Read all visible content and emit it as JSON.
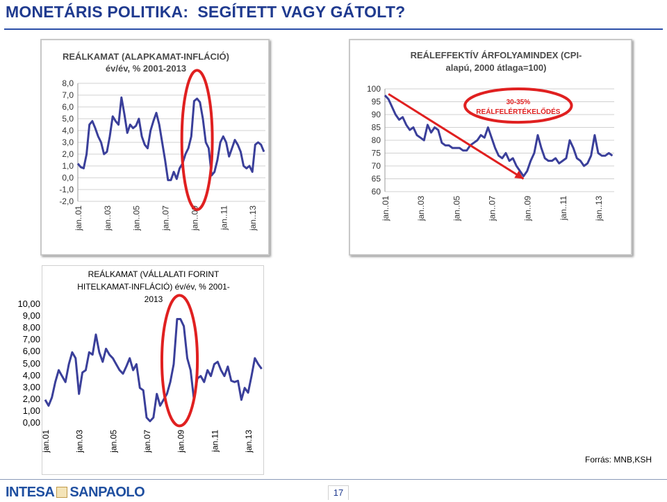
{
  "page": {
    "title": "MONETÁRIS POLITIKA:  SEGÍTETT VAGY GÁTOLT?",
    "source": "Forrás: MNB,KSH",
    "page_number": "17",
    "logo_left": "INTESA",
    "logo_right": "SANPAOLO",
    "accent": "#2b3a9a",
    "highlight": "#e02020"
  },
  "chart_data": [
    {
      "type": "line",
      "title": "REÁLKAMAT (ALAPKAMAT-INFLÁCIÓ)",
      "subtitle": "év/év, % 2001-2013",
      "ylim": [
        -2,
        8
      ],
      "yticks": [
        -2,
        -1,
        0,
        1,
        2,
        3,
        4,
        5,
        6,
        7,
        8
      ],
      "ytick_labels": [
        "-2,0",
        "-1,0",
        "0,0",
        "1,0",
        "2,0",
        "3,0",
        "4,0",
        "5,0",
        "6,0",
        "7,0",
        "8,0"
      ],
      "xlim": [
        2001.0,
        2013.9
      ],
      "xticks": [
        2001,
        2003,
        2005,
        2007,
        2009,
        2011,
        2013
      ],
      "xtick_labels": [
        "jan..01",
        "jan..03",
        "jan..05",
        "jan..07",
        "jan..09",
        "jan..11",
        "jan..13"
      ],
      "grid": true,
      "annotation": {
        "shape": "ellipse",
        "cx": 2009.2,
        "cy": 3.2,
        "rx": 1.05,
        "ry": 5.9,
        "text": ""
      },
      "series": [
        {
          "color": "#3a3f9a",
          "x": [
            2001.0,
            2001.2,
            2001.4,
            2001.6,
            2001.8,
            2002.0,
            2002.2,
            2002.4,
            2002.6,
            2002.8,
            2003.0,
            2003.2,
            2003.4,
            2003.6,
            2003.8,
            2004.0,
            2004.2,
            2004.4,
            2004.6,
            2004.8,
            2005.0,
            2005.2,
            2005.4,
            2005.6,
            2005.8,
            2006.0,
            2006.2,
            2006.4,
            2006.6,
            2006.8,
            2007.0,
            2007.2,
            2007.4,
            2007.6,
            2007.8,
            2008.0,
            2008.2,
            2008.4,
            2008.6,
            2008.8,
            2009.0,
            2009.2,
            2009.4,
            2009.6,
            2009.8,
            2010.0,
            2010.2,
            2010.4,
            2010.6,
            2010.8,
            2011.0,
            2011.2,
            2011.4,
            2011.6,
            2011.8,
            2012.0,
            2012.2,
            2012.4,
            2012.6,
            2012.8,
            2013.0,
            2013.2,
            2013.4,
            2013.6,
            2013.8
          ],
          "y": [
            1.2,
            0.9,
            0.8,
            2.0,
            4.5,
            4.8,
            4.2,
            3.5,
            3.0,
            2.0,
            2.2,
            3.5,
            5.2,
            4.8,
            4.5,
            6.8,
            5.4,
            3.8,
            4.5,
            4.2,
            4.4,
            5.0,
            3.5,
            2.8,
            2.5,
            4.0,
            4.8,
            5.5,
            4.5,
            3.0,
            1.5,
            -0.2,
            -0.2,
            0.5,
            -0.1,
            0.8,
            1.2,
            2.0,
            2.5,
            3.5,
            6.5,
            6.7,
            6.4,
            5.0,
            3.0,
            2.5,
            0.2,
            0.5,
            1.5,
            3.0,
            3.5,
            3.0,
            1.8,
            2.5,
            3.2,
            2.8,
            2.2,
            1.0,
            0.8,
            1.0,
            0.5,
            2.8,
            3.0,
            2.8,
            2.2
          ]
        }
      ]
    },
    {
      "type": "line",
      "title": "REÁLEFFEKTÍV ÁRFOLYAMINDEX (CPI-",
      "subtitle": "alapú, 2000 átlaga=100)",
      "ylim": [
        60,
        100
      ],
      "yticks": [
        60,
        65,
        70,
        75,
        80,
        85,
        90,
        95,
        100
      ],
      "ytick_labels": [
        "60",
        "65",
        "70",
        "75",
        "80",
        "85",
        "90",
        "95",
        "100"
      ],
      "xlim": [
        2001.0,
        2013.9
      ],
      "xticks": [
        2001,
        2003,
        2005,
        2007,
        2009,
        2011,
        2013
      ],
      "xtick_labels": [
        "jan..01",
        "jan..03",
        "jan..05",
        "jan..07",
        "jan..09",
        "jan..11",
        "jan..13"
      ],
      "grid": true,
      "annotation": {
        "shape": "ellipse",
        "cx": 2008.5,
        "cy": 93.5,
        "rx": 3.0,
        "ry": 6.5,
        "text_line1": "30-35%",
        "text_line2": "REÁLFELÉRTÉKELŐDÉS"
      },
      "arrow": {
        "from": [
          2001.2,
          98
        ],
        "to": [
          2008.8,
          65
        ]
      },
      "series": [
        {
          "color": "#3a3f9a",
          "x": [
            2001.0,
            2001.2,
            2001.4,
            2001.6,
            2001.8,
            2002.0,
            2002.2,
            2002.4,
            2002.6,
            2002.8,
            2003.0,
            2003.2,
            2003.4,
            2003.6,
            2003.8,
            2004.0,
            2004.2,
            2004.4,
            2004.6,
            2004.8,
            2005.0,
            2005.2,
            2005.4,
            2005.6,
            2005.8,
            2006.0,
            2006.2,
            2006.4,
            2006.6,
            2006.8,
            2007.0,
            2007.2,
            2007.4,
            2007.6,
            2007.8,
            2008.0,
            2008.2,
            2008.4,
            2008.6,
            2008.8,
            2009.0,
            2009.2,
            2009.4,
            2009.6,
            2009.8,
            2010.0,
            2010.2,
            2010.4,
            2010.6,
            2010.8,
            2011.0,
            2011.2,
            2011.4,
            2011.6,
            2011.8,
            2012.0,
            2012.2,
            2012.4,
            2012.6,
            2012.8,
            2013.0,
            2013.2,
            2013.4,
            2013.6,
            2013.8
          ],
          "y": [
            97.5,
            96,
            93,
            90,
            88,
            89,
            86,
            84,
            85,
            82,
            81,
            80,
            86,
            83,
            85,
            84,
            79,
            78,
            78,
            77,
            77,
            77,
            76,
            76,
            78,
            79,
            80,
            82,
            81,
            85,
            81,
            77,
            74,
            73,
            75,
            72,
            73,
            70,
            68,
            66,
            68,
            72,
            75,
            82,
            77,
            73,
            72,
            72,
            73,
            71,
            72,
            73,
            80,
            77,
            73,
            72,
            70,
            71,
            74,
            82,
            75,
            74,
            74,
            75,
            74
          ]
        }
      ]
    },
    {
      "type": "line",
      "title": "REÁLKAMAT (VÁLLALATI FORINT HITELKAMAT-INFLÁCIÓ)  év/év, % 2001-2013",
      "ylim": [
        0,
        10
      ],
      "yticks": [
        0,
        1,
        2,
        3,
        4,
        5,
        6,
        7,
        8,
        9,
        10
      ],
      "ytick_labels": [
        "0,00",
        "1,00",
        "2,00",
        "3,00",
        "4,00",
        "5,00",
        "6,00",
        "7,00",
        "8,00",
        "9,00",
        "10,00"
      ],
      "xlim": [
        2001.0,
        2013.9
      ],
      "xticks": [
        2001,
        2003,
        2005,
        2007,
        2009,
        2011,
        2013
      ],
      "xtick_labels": [
        "jan.01",
        "jan.03",
        "jan.05",
        "jan.07",
        "jan.09",
        "jan.11",
        "jan.13"
      ],
      "grid": false,
      "annotation": {
        "shape": "ellipse",
        "cx": 2008.95,
        "cy": 5.3,
        "rx": 1.05,
        "ry": 5.5,
        "text": ""
      },
      "series": [
        {
          "color": "#3a3f9a",
          "x": [
            2001.0,
            2001.2,
            2001.4,
            2001.6,
            2001.8,
            2002.0,
            2002.2,
            2002.4,
            2002.6,
            2002.8,
            2003.0,
            2003.2,
            2003.4,
            2003.6,
            2003.8,
            2004.0,
            2004.2,
            2004.4,
            2004.6,
            2004.8,
            2005.0,
            2005.2,
            2005.4,
            2005.6,
            2005.8,
            2006.0,
            2006.2,
            2006.4,
            2006.6,
            2006.8,
            2007.0,
            2007.2,
            2007.4,
            2007.6,
            2007.8,
            2008.0,
            2008.2,
            2008.4,
            2008.6,
            2008.8,
            2009.0,
            2009.2,
            2009.4,
            2009.6,
            2009.8,
            2010.0,
            2010.2,
            2010.4,
            2010.6,
            2010.8,
            2011.0,
            2011.2,
            2011.4,
            2011.6,
            2011.8,
            2012.0,
            2012.2,
            2012.4,
            2012.6,
            2012.8,
            2013.0,
            2013.2,
            2013.4,
            2013.6,
            2013.8
          ],
          "y": [
            2.0,
            1.5,
            2.2,
            3.5,
            4.5,
            4.0,
            3.5,
            5.0,
            6.0,
            5.5,
            2.5,
            4.3,
            4.5,
            6.0,
            5.8,
            7.5,
            6.0,
            5.2,
            6.3,
            5.8,
            5.5,
            5.0,
            4.5,
            4.2,
            4.8,
            5.5,
            4.5,
            5.0,
            3.0,
            2.8,
            0.5,
            0.2,
            0.5,
            2.5,
            1.5,
            2.0,
            2.5,
            3.5,
            5.0,
            8.8,
            8.8,
            8.2,
            5.5,
            4.5,
            2.0,
            3.8,
            4.0,
            3.5,
            4.5,
            4.0,
            5.0,
            5.2,
            4.5,
            4.0,
            4.8,
            3.6,
            3.5,
            3.6,
            2.0,
            3.0,
            2.6,
            4.0,
            5.5,
            5.0,
            4.6
          ]
        }
      ]
    }
  ]
}
